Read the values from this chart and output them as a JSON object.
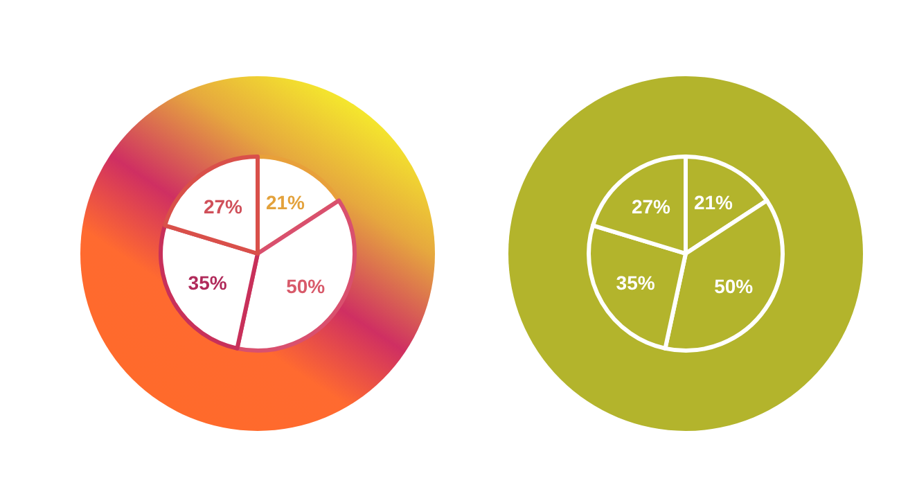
{
  "chart_data": [
    {
      "type": "pie",
      "categories": [
        null,
        null,
        null,
        null
      ],
      "values": [
        21,
        50,
        35,
        27
      ],
      "value_labels": [
        "21%",
        "50%",
        "35%",
        "27%"
      ],
      "colors": [
        "#ffffff",
        "#ffffff",
        "#ffffff",
        "#ffffff"
      ]
    },
    {
      "type": "pie",
      "categories": [
        null,
        null,
        null,
        null
      ],
      "values": [
        21,
        50,
        35,
        27
      ],
      "value_labels": [
        "21%",
        "50%",
        "35%",
        "27%"
      ],
      "colors": [
        "#b3b42c",
        "#b3b42c",
        "#b3b42c",
        "#b3b42c"
      ]
    }
  ]
}
